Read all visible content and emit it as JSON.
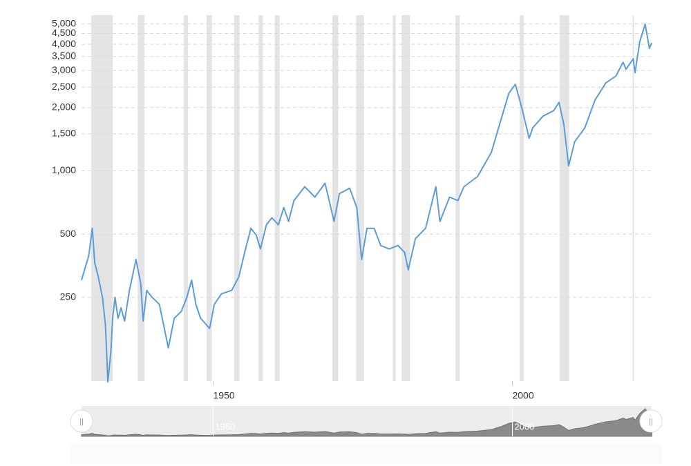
{
  "chart_data": {
    "type": "line",
    "log_y": true,
    "grid": true,
    "xlim": [
      1928,
      2023.5
    ],
    "ylim": [
      100,
      5500
    ],
    "xticks": [
      1950,
      2000
    ],
    "yticks": [
      250,
      500,
      {
        "value": 1000,
        "label": "1,000"
      },
      {
        "value": 1500,
        "label": "1,500"
      },
      {
        "value": 2000,
        "label": "2,000"
      },
      {
        "value": 2500,
        "label": "2,500"
      },
      {
        "value": 3000,
        "label": "3,000"
      },
      {
        "value": 3500,
        "label": "3,500"
      },
      {
        "value": 4000,
        "label": "4,000"
      },
      {
        "value": 4500,
        "label": "4,500"
      },
      {
        "value": 5000,
        "label": "5,000"
      }
    ],
    "recession_color": "#e4e4e6",
    "recessions": [
      [
        1929.6,
        1933.2
      ],
      [
        1937.4,
        1938.5
      ],
      [
        1945.1,
        1945.8
      ],
      [
        1948.9,
        1949.8
      ],
      [
        1953.5,
        1954.4
      ],
      [
        1957.6,
        1958.3
      ],
      [
        1960.3,
        1961.1
      ],
      [
        1969.9,
        1970.9
      ],
      [
        1973.9,
        1975.2
      ],
      [
        1980.0,
        1980.5
      ],
      [
        1981.5,
        1982.9
      ],
      [
        1990.5,
        1991.2
      ],
      [
        2001.2,
        2001.9
      ],
      [
        2007.9,
        2009.5
      ],
      [
        2020.1,
        2020.3
      ]
    ],
    "x": [
      1928.0,
      1928.5,
      1929.2,
      1929.8,
      1930.2,
      1930.8,
      1931.5,
      1932.0,
      1932.4,
      1932.9,
      1933.2,
      1933.6,
      1934.1,
      1934.6,
      1935.2,
      1936.0,
      1937.1,
      1937.9,
      1938.3,
      1938.9,
      1939.8,
      1941.0,
      1942.5,
      1943.5,
      1944.7,
      1945.6,
      1946.4,
      1947.1,
      1947.9,
      1949.4,
      1950.2,
      1951.4,
      1953.1,
      1954.3,
      1955.4,
      1956.3,
      1957.2,
      1957.9,
      1958.9,
      1959.8,
      1960.9,
      1961.8,
      1962.6,
      1963.5,
      1965.3,
      1967.0,
      1968.7,
      1970.2,
      1971.1,
      1972.8,
      1974.0,
      1974.8,
      1975.7,
      1976.9,
      1978.0,
      1979.4,
      1980.9,
      1982.0,
      1982.6,
      1983.8,
      1985.5,
      1987.2,
      1987.9,
      1989.5,
      1990.9,
      1991.9,
      1994.2,
      1996.5,
      1998.2,
      1999.4,
      2000.5,
      2001.7,
      2002.8,
      2003.4,
      2005.1,
      2006.9,
      2007.8,
      2008.6,
      2009.4,
      2010.4,
      2012.1,
      2013.8,
      2015.6,
      2017.3,
      2018.5,
      2019.0,
      2020.2,
      2020.5,
      2021.3,
      2022.2,
      2022.9,
      2023.3
    ],
    "series": [
      {
        "color": "#5b9bd8",
        "values": [
          302,
          338,
          394,
          533,
          365,
          314,
          250,
          185,
          99,
          137,
          199,
          250,
          199,
          223,
          193,
          270,
          379,
          291,
          193,
          270,
          250,
          232,
          144,
          199,
          215,
          250,
          302,
          232,
          199,
          178,
          232,
          260,
          270,
          314,
          425,
          533,
          494,
          425,
          554,
          598,
          554,
          669,
          575,
          722,
          840,
          750,
          873,
          575,
          779,
          827,
          669,
          379,
          533,
          533,
          441,
          425,
          441,
          409,
          338,
          476,
          533,
          840,
          575,
          750,
          722,
          840,
          941,
          1227,
          1792,
          2336,
          2578,
          1933,
          1428,
          1600,
          1819,
          1933,
          2117,
          1661,
          1054,
          1375,
          1600,
          2166,
          2617,
          2823,
          3285,
          3045,
          3411,
          2932,
          4123,
          4983,
          3823,
          4060
        ]
      }
    ]
  }
}
